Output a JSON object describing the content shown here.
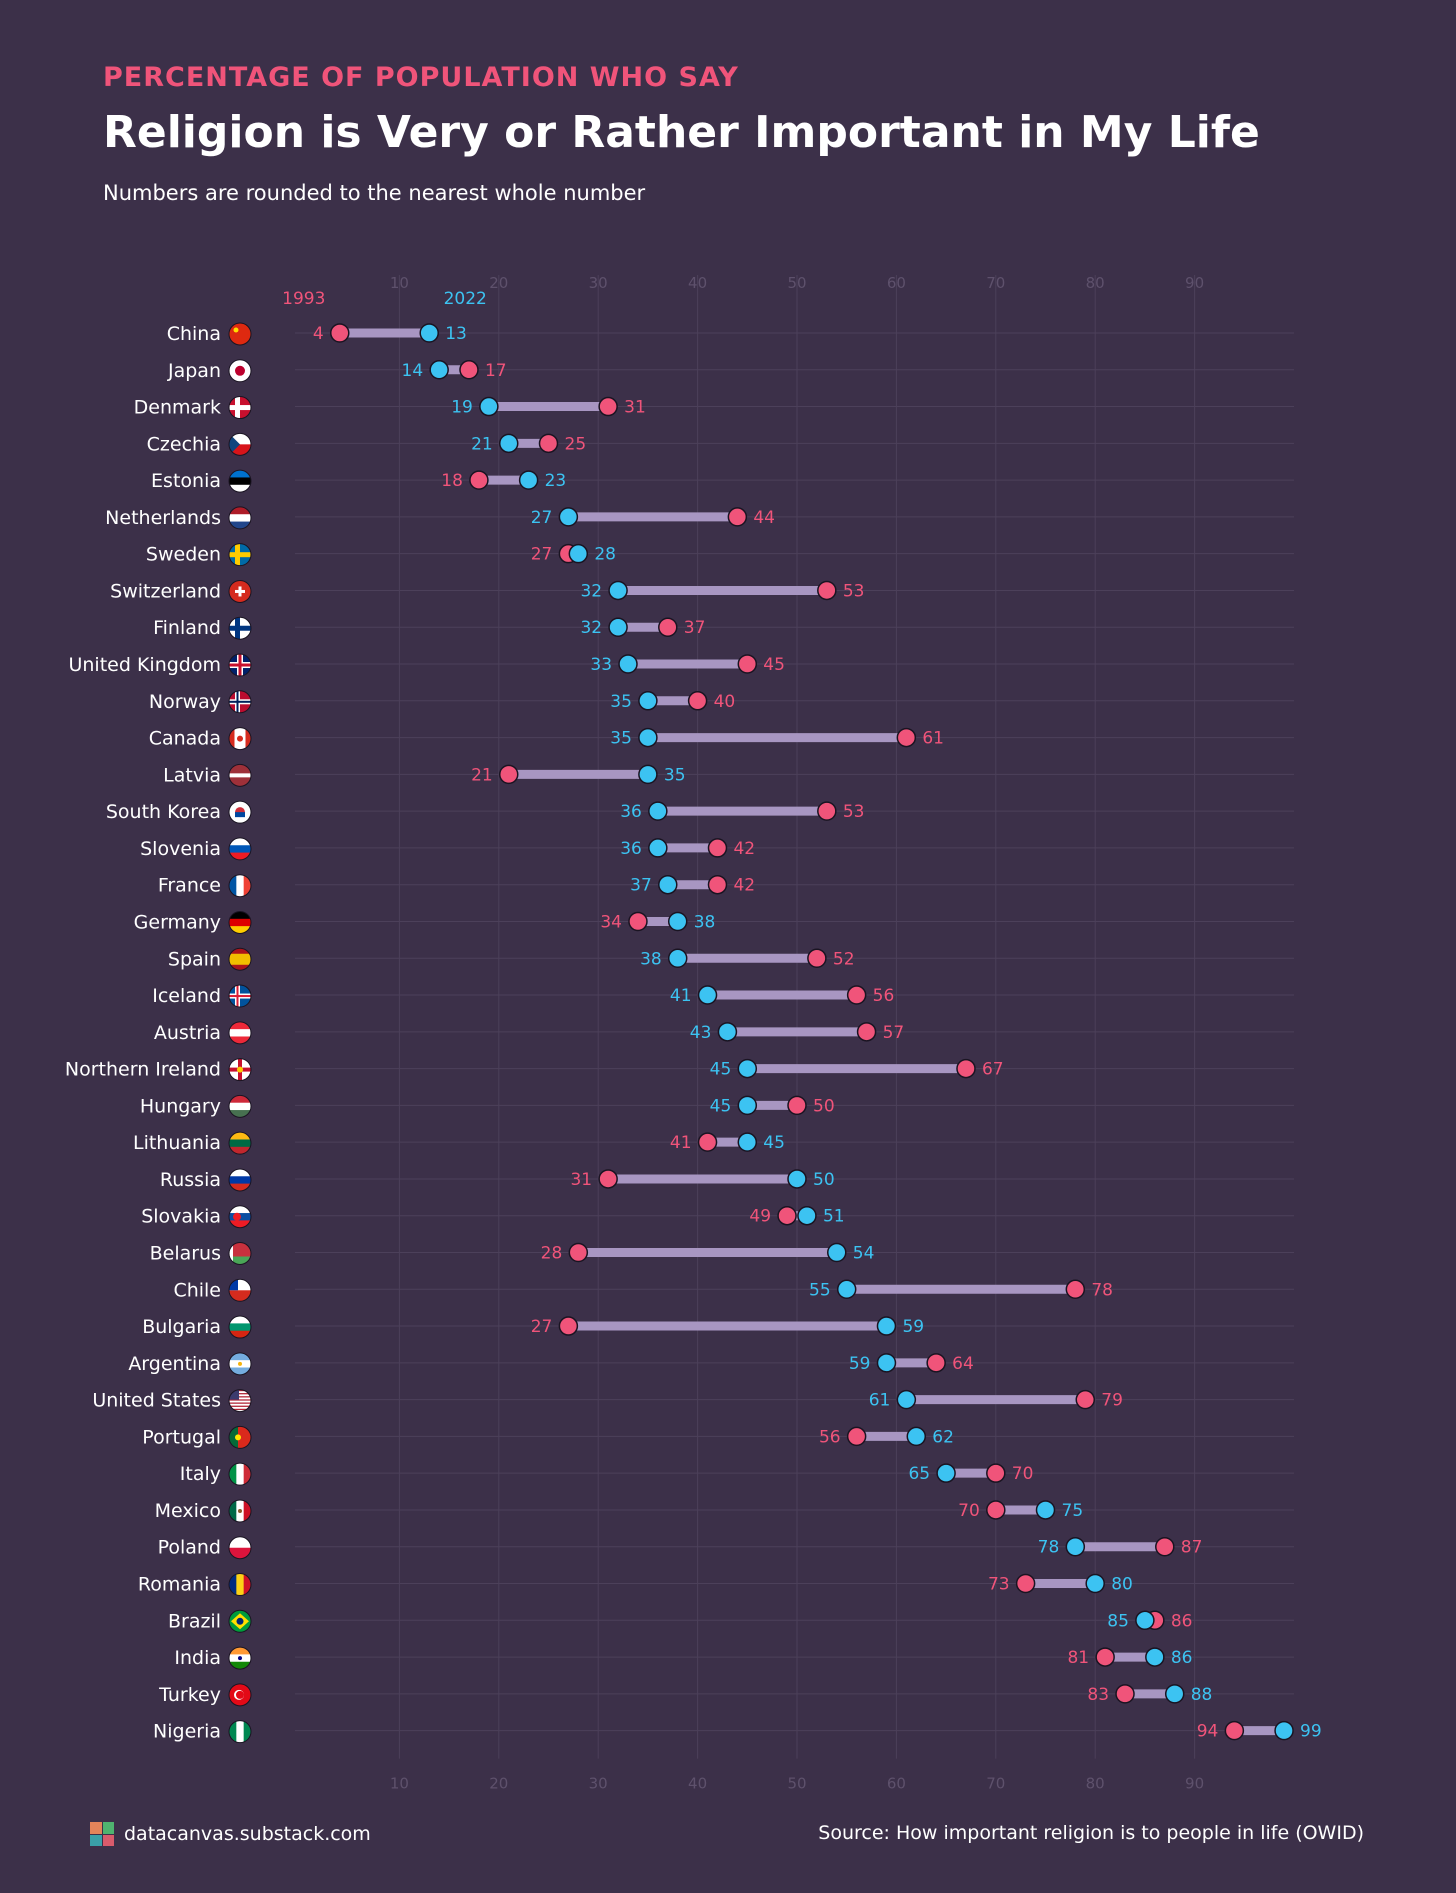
{
  "header": {
    "kicker": "PERCENTAGE OF POPULATION WHO SAY",
    "title": "Religion is Very or Rather Important in My Life",
    "subtitle": "Numbers are rounded to the nearest whole number"
  },
  "footer": {
    "brand": "datacanvas.substack.com",
    "source": "Source: How important religion is to people in life (OWID)"
  },
  "colors": {
    "background": "#3c3049",
    "value_1993": "#f0547a",
    "value_2022": "#3cc3f2",
    "connector": "#a896c2",
    "grid": "#4c405a",
    "tick": "#5e516c"
  },
  "chart_data": {
    "type": "dumbbell",
    "xlim": [
      0,
      100
    ],
    "x_ticks": [
      10,
      20,
      30,
      40,
      50,
      60,
      70,
      80,
      90
    ],
    "series": [
      {
        "name": "1993",
        "color": "#f0547a"
      },
      {
        "name": "2022",
        "color": "#3cc3f2"
      }
    ],
    "grid": true,
    "rows": [
      {
        "country": "China",
        "flag": "china-flag-icon",
        "v1993": 4,
        "v2022": 13
      },
      {
        "country": "Japan",
        "flag": "japan-flag-icon",
        "v1993": 17,
        "v2022": 14
      },
      {
        "country": "Denmark",
        "flag": "denmark-flag-icon",
        "v1993": 31,
        "v2022": 19
      },
      {
        "country": "Czechia",
        "flag": "czechia-flag-icon",
        "v1993": 25,
        "v2022": 21
      },
      {
        "country": "Estonia",
        "flag": "estonia-flag-icon",
        "v1993": 18,
        "v2022": 23
      },
      {
        "country": "Netherlands",
        "flag": "netherlands-flag-icon",
        "v1993": 44,
        "v2022": 27
      },
      {
        "country": "Sweden",
        "flag": "sweden-flag-icon",
        "v1993": 27,
        "v2022": 28
      },
      {
        "country": "Switzerland",
        "flag": "switzerland-flag-icon",
        "v1993": 53,
        "v2022": 32
      },
      {
        "country": "Finland",
        "flag": "finland-flag-icon",
        "v1993": 37,
        "v2022": 32
      },
      {
        "country": "United Kingdom",
        "flag": "united-kingdom-flag-icon",
        "v1993": 45,
        "v2022": 33
      },
      {
        "country": "Norway",
        "flag": "norway-flag-icon",
        "v1993": 40,
        "v2022": 35
      },
      {
        "country": "Canada",
        "flag": "canada-flag-icon",
        "v1993": 61,
        "v2022": 35
      },
      {
        "country": "Latvia",
        "flag": "latvia-flag-icon",
        "v1993": 21,
        "v2022": 35
      },
      {
        "country": "South Korea",
        "flag": "south-korea-flag-icon",
        "v1993": 53,
        "v2022": 36
      },
      {
        "country": "Slovenia",
        "flag": "slovenia-flag-icon",
        "v1993": 42,
        "v2022": 36
      },
      {
        "country": "France",
        "flag": "france-flag-icon",
        "v1993": 42,
        "v2022": 37
      },
      {
        "country": "Germany",
        "flag": "germany-flag-icon",
        "v1993": 34,
        "v2022": 38
      },
      {
        "country": "Spain",
        "flag": "spain-flag-icon",
        "v1993": 52,
        "v2022": 38
      },
      {
        "country": "Iceland",
        "flag": "iceland-flag-icon",
        "v1993": 56,
        "v2022": 41
      },
      {
        "country": "Austria",
        "flag": "austria-flag-icon",
        "v1993": 57,
        "v2022": 43
      },
      {
        "country": "Northern Ireland",
        "flag": "northern-ireland-flag-icon",
        "v1993": 67,
        "v2022": 45
      },
      {
        "country": "Hungary",
        "flag": "hungary-flag-icon",
        "v1993": 50,
        "v2022": 45
      },
      {
        "country": "Lithuania",
        "flag": "lithuania-flag-icon",
        "v1993": 41,
        "v2022": 45
      },
      {
        "country": "Russia",
        "flag": "russia-flag-icon",
        "v1993": 31,
        "v2022": 50
      },
      {
        "country": "Slovakia",
        "flag": "slovakia-flag-icon",
        "v1993": 49,
        "v2022": 51
      },
      {
        "country": "Belarus",
        "flag": "belarus-flag-icon",
        "v1993": 28,
        "v2022": 54
      },
      {
        "country": "Chile",
        "flag": "chile-flag-icon",
        "v1993": 78,
        "v2022": 55
      },
      {
        "country": "Bulgaria",
        "flag": "bulgaria-flag-icon",
        "v1993": 27,
        "v2022": 59
      },
      {
        "country": "Argentina",
        "flag": "argentina-flag-icon",
        "v1993": 64,
        "v2022": 59
      },
      {
        "country": "United States",
        "flag": "united-states-flag-icon",
        "v1993": 79,
        "v2022": 61
      },
      {
        "country": "Portugal",
        "flag": "portugal-flag-icon",
        "v1993": 56,
        "v2022": 62
      },
      {
        "country": "Italy",
        "flag": "italy-flag-icon",
        "v1993": 70,
        "v2022": 65
      },
      {
        "country": "Mexico",
        "flag": "mexico-flag-icon",
        "v1993": 70,
        "v2022": 75
      },
      {
        "country": "Poland",
        "flag": "poland-flag-icon",
        "v1993": 87,
        "v2022": 78
      },
      {
        "country": "Romania",
        "flag": "romania-flag-icon",
        "v1993": 73,
        "v2022": 80
      },
      {
        "country": "Brazil",
        "flag": "brazil-flag-icon",
        "v1993": 86,
        "v2022": 85
      },
      {
        "country": "India",
        "flag": "india-flag-icon",
        "v1993": 81,
        "v2022": 86
      },
      {
        "country": "Turkey",
        "flag": "turkey-flag-icon",
        "v1993": 83,
        "v2022": 88
      },
      {
        "country": "Nigeria",
        "flag": "nigeria-flag-icon",
        "v1993": 94,
        "v2022": 99
      }
    ]
  }
}
